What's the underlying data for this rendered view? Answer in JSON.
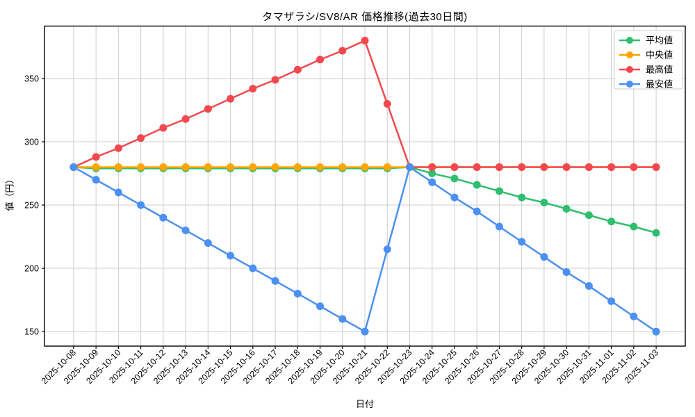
{
  "figure": {
    "background": "#ffffff",
    "grid_color": "#cccccc",
    "spine_color": "#000000",
    "tick_color": "#000000",
    "legend_border_color": "#cccccc",
    "legend_background": "#ffffff"
  },
  "chart_data": {
    "type": "line",
    "title": "タマザラシ/SV8/AR 価格推移(過去30日間)",
    "xlabel": "日付",
    "ylabel": "値（円）",
    "grid": true,
    "legend_position": "upper right",
    "y_ticks": [
      150,
      200,
      250,
      300,
      350
    ],
    "ylim": [
      138.5,
      391.5
    ],
    "x_tick_labels": [
      "2025-10-08",
      "2025-10-09",
      "2025-10-10",
      "2025-10-11",
      "2025-10-12",
      "2025-10-13",
      "2025-10-14",
      "2025-10-15",
      "2025-10-16",
      "2025-10-17",
      "2025-10-18",
      "2025-10-19",
      "2025-10-20",
      "2025-10-21",
      "2025-10-22",
      "2025-10-23",
      "2025-10-24",
      "2025-10-25",
      "2025-10-26",
      "2025-10-27",
      "2025-10-28",
      "2025-10-29",
      "2025-10-30",
      "2025-10-31",
      "2025-11-01",
      "2025-11-02",
      "2025-11-03"
    ],
    "series": [
      {
        "key": "average",
        "label": "平均値",
        "color": "#2fbe6e",
        "values": [
          280,
          279,
          279,
          279,
          279,
          279,
          279,
          279,
          279,
          279,
          279,
          279,
          279,
          279,
          279,
          280,
          275,
          271,
          266,
          261,
          256,
          252,
          247,
          242,
          237,
          233,
          228
        ]
      },
      {
        "key": "median",
        "label": "中央値",
        "color": "#ffa502",
        "values": [
          280,
          280,
          280,
          280,
          280,
          280,
          280,
          280,
          280,
          280,
          280,
          280,
          280,
          280,
          280,
          280,
          280,
          280,
          280,
          280,
          280,
          280,
          280,
          280,
          280,
          280,
          280
        ]
      },
      {
        "key": "max",
        "label": "最高値",
        "color": "#f4484e",
        "values": [
          280,
          288,
          295,
          303,
          311,
          318,
          326,
          334,
          342,
          349,
          357,
          365,
          372,
          380,
          330,
          280,
          280,
          280,
          280,
          280,
          280,
          280,
          280,
          280,
          280,
          280,
          280
        ]
      },
      {
        "key": "min",
        "label": "最安値",
        "color": "#4b90f2",
        "values": [
          280,
          270,
          260,
          250,
          240,
          230,
          220,
          210,
          200,
          190,
          180,
          170,
          160,
          150,
          215,
          280,
          268,
          256,
          245,
          233,
          221,
          209,
          197,
          186,
          174,
          162,
          150
        ]
      }
    ]
  }
}
